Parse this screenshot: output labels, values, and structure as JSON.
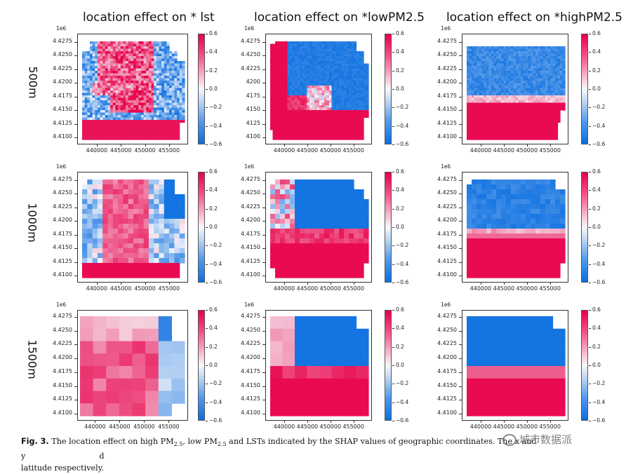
{
  "figure": {
    "column_titles": [
      "location effect on * lst",
      "location effect on *lowPM2.5",
      "location effect on *highPM2.5"
    ],
    "row_labels": [
      "500m",
      "1000m",
      "1500m"
    ],
    "exponent": "1e6",
    "yticks": [
      "4.4275",
      "4.4250",
      "4.4225",
      "4.4200",
      "4.4175",
      "4.4150",
      "4.4125",
      "4.4100"
    ],
    "yticks_short": [
      "4.4275",
      "4.4250",
      "4.4225",
      "4200",
      "4175",
      "4150",
      "4125",
      "4100"
    ],
    "xticks": [
      "440000",
      "445000",
      "450000",
      "455000"
    ],
    "colorbar_ticks": [
      "0.6",
      "0.4",
      "0.2",
      "0.0",
      "−0.2",
      "−0.4",
      "−0.6"
    ],
    "colors": {
      "high": "#e8004a",
      "mid": "#f7f7fb",
      "low": "#0a6ee0"
    }
  },
  "chart_data": [
    {
      "type": "heatmap",
      "title": "location effect on * lst",
      "row": "500m",
      "xlim": [
        436000,
        457000
      ],
      "ylim": [
        4.409,
        4.428
      ],
      "colorbar_range": [
        -0.6,
        0.6
      ],
      "pattern": "lst500"
    },
    {
      "type": "heatmap",
      "title": "location effect on *lowPM2.5",
      "row": "500m",
      "xlim": [
        436000,
        457000
      ],
      "ylim": [
        4.409,
        4.428
      ],
      "colorbar_range": [
        -0.6,
        0.6
      ],
      "pattern": "low500"
    },
    {
      "type": "heatmap",
      "title": "location effect on *highPM2.5",
      "row": "500m",
      "xlim": [
        436000,
        457000
      ],
      "ylim": [
        4.409,
        4.428
      ],
      "colorbar_range": [
        -0.6,
        0.6
      ],
      "pattern": "high500"
    },
    {
      "type": "heatmap",
      "title": "location effect on * lst",
      "row": "1000m",
      "xlim": [
        436000,
        457000
      ],
      "ylim": [
        4.409,
        4.428
      ],
      "colorbar_range": [
        -0.6,
        0.6
      ],
      "pattern": "lst1000"
    },
    {
      "type": "heatmap",
      "title": "location effect on *lowPM2.5",
      "row": "1000m",
      "xlim": [
        436000,
        457000
      ],
      "ylim": [
        4.409,
        4.428
      ],
      "colorbar_range": [
        -0.6,
        0.6
      ],
      "pattern": "low1000"
    },
    {
      "type": "heatmap",
      "title": "location effect on *highPM2.5",
      "row": "1000m",
      "xlim": [
        436000,
        457000
      ],
      "ylim": [
        4.409,
        4.428
      ],
      "colorbar_range": [
        -0.6,
        0.6
      ],
      "pattern": "high1000"
    },
    {
      "type": "heatmap",
      "title": "location effect on * lst",
      "row": "1500m",
      "xlim": [
        436000,
        457000
      ],
      "ylim": [
        4.409,
        4.428
      ],
      "colorbar_range": [
        -0.6,
        0.6
      ],
      "pattern": "lst1500"
    },
    {
      "type": "heatmap",
      "title": "location effect on *lowPM2.5",
      "row": "1500m",
      "xlim": [
        436000,
        457000
      ],
      "ylim": [
        4.409,
        4.428
      ],
      "colorbar_range": [
        -0.6,
        0.6
      ],
      "pattern": "low1500"
    },
    {
      "type": "heatmap",
      "title": "location effect on *highPM2.5",
      "row": "1500m",
      "xlim": [
        436000,
        457000
      ],
      "ylim": [
        4.409,
        4.428
      ],
      "colorbar_range": [
        -0.6,
        0.6
      ],
      "pattern": "high1500"
    }
  ],
  "caption": {
    "label": "Fig. 3.",
    "text_1": "The location effect on high PM",
    "sub_1": "2.5",
    "text_2": ", low PM",
    "sub_2": "2.5",
    "text_3": " and LSTs indicated by the SHAP values of geographic coordinates. The x and y",
    "text_4": "d",
    "line_2": "latitude respectively."
  },
  "watermark": {
    "text": "城市数据派"
  }
}
